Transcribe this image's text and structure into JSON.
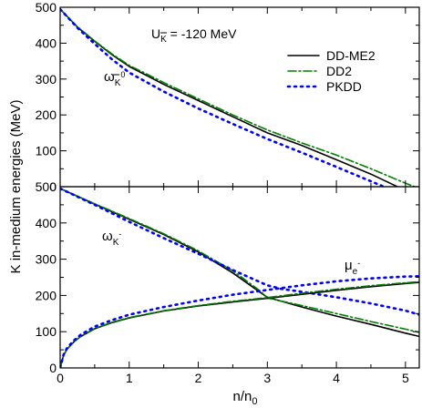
{
  "chart_data": {
    "type": "line",
    "xlabel": "n/n0",
    "ylabel": "K in-medium energies (MeV)",
    "xlim": [
      0,
      5.2
    ],
    "ylim": [
      0,
      500
    ],
    "x_ticks": [
      0,
      1,
      2,
      3,
      4,
      5
    ],
    "y_ticks": [
      0,
      100,
      200,
      300,
      400,
      500
    ],
    "annotation": "U_K = -120 MeV",
    "legend": {
      "placement": "top-right",
      "entries": [
        {
          "label": "DD-ME2",
          "color": "#000000",
          "style": "solid"
        },
        {
          "label": "DD2",
          "color": "#008000",
          "style": "dashdot"
        },
        {
          "label": "PKDD",
          "color": "#0000ff",
          "style": "dotted"
        }
      ]
    },
    "panels": [
      {
        "name": "top",
        "series": [
          {
            "label": "ω_K0bar",
            "model": "DD-ME2",
            "x": [
              0,
              0.25,
              0.5,
              0.75,
              1,
              1.5,
              2,
              2.5,
              3,
              3.5,
              4,
              4.5,
              4.85,
              5.0
            ],
            "y": [
              495,
              445,
              405,
              368,
              335,
              285,
              240,
              195,
              150,
              115,
              75,
              35,
              3,
              -10
            ]
          },
          {
            "label": "ω_K0bar",
            "model": "DD2",
            "x": [
              0,
              0.25,
              0.5,
              0.75,
              1,
              1.5,
              2,
              2.5,
              3,
              3.5,
              4,
              4.5,
              5.0,
              5.2
            ],
            "y": [
              495,
              446,
              406,
              370,
              338,
              290,
              245,
              200,
              158,
              122,
              88,
              50,
              10,
              -5
            ]
          },
          {
            "label": "ω_K0bar",
            "model": "PKDD",
            "x": [
              0,
              0.25,
              0.5,
              0.75,
              1,
              1.5,
              2,
              2.5,
              3,
              3.5,
              4,
              4.5,
              4.75
            ],
            "y": [
              495,
              443,
              398,
              355,
              318,
              265,
              218,
              175,
              133,
              95,
              55,
              15,
              -5
            ]
          }
        ]
      },
      {
        "name": "bottom",
        "series": [
          {
            "label": "ω_K-",
            "model": "DD-ME2",
            "x": [
              0,
              0.5,
              1,
              1.5,
              2,
              2.5,
              2.9,
              3.0,
              3.5,
              4,
              4.5,
              5.0,
              5.2
            ],
            "y": [
              495,
              452,
              410,
              368,
              320,
              262,
              208,
              195,
              168,
              143,
              120,
              96,
              87
            ]
          },
          {
            "label": "ω_K-",
            "model": "DD2",
            "x": [
              0,
              0.5,
              1,
              1.5,
              2,
              2.5,
              2.9,
              3.0,
              3.5,
              4,
              4.5,
              5.0,
              5.2
            ],
            "y": [
              495,
              453,
              412,
              370,
              323,
              268,
              212,
              193,
              172,
              150,
              128,
              107,
              98
            ]
          },
          {
            "label": "ω_K-",
            "model": "PKDD",
            "x": [
              0,
              0.5,
              1,
              1.5,
              2,
              2.5,
              3.0,
              3.2,
              3.5,
              4,
              4.5,
              5.0,
              5.2
            ],
            "y": [
              495,
              450,
              403,
              358,
              315,
              270,
              228,
              218,
              210,
              195,
              178,
              158,
              147
            ]
          },
          {
            "label": "μ_e-",
            "model": "DD-ME2",
            "x": [
              0,
              0.05,
              0.1,
              0.2,
              0.3,
              0.5,
              0.75,
              1,
              1.5,
              2,
              2.5,
              3,
              3.5,
              4,
              4.5,
              5.0,
              5.2
            ],
            "y": [
              0,
              35,
              52,
              72,
              87,
              108,
              125,
              138,
              157,
              171,
              182,
              192,
              203,
              214,
              224,
              233,
              236
            ]
          },
          {
            "label": "μ_e-",
            "model": "DD2",
            "x": [
              0,
              0.05,
              0.1,
              0.2,
              0.3,
              0.5,
              0.75,
              1,
              1.5,
              2,
              2.5,
              3,
              3.5,
              4,
              4.5,
              5.0,
              5.2
            ],
            "y": [
              0,
              35,
              52,
              72,
              88,
              109,
              126,
              139,
              158,
              172,
              184,
              194,
              206,
              217,
              227,
              235,
              238
            ]
          },
          {
            "label": "μ_e-",
            "model": "PKDD",
            "x": [
              0,
              0.05,
              0.1,
              0.2,
              0.3,
              0.5,
              0.75,
              1,
              1.5,
              2,
              2.5,
              3,
              3.5,
              4,
              4.5,
              5.0,
              5.2
            ],
            "y": [
              0,
              37,
              55,
              76,
              92,
              114,
              132,
              147,
              168,
              186,
              202,
              215,
              228,
              239,
              247,
              252,
              253
            ]
          }
        ]
      }
    ]
  }
}
